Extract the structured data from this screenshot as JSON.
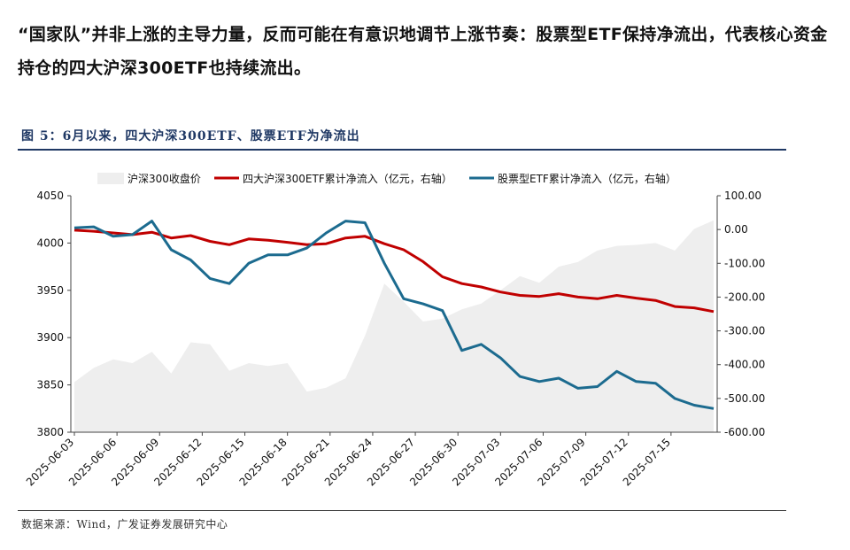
{
  "headline": "“国家队”并非上涨的主导力量，反而可能在有意识地调节上涨节奏：股票型ETF保持净流出，代表核心资金持仓的四大沪深300ETF也持续流出。",
  "figure_title": "图 5：6月以来，四大沪深300ETF、股票ETF为净流出",
  "source": "数据来源：Wind，广发证券发展研究中心",
  "colors": {
    "area": "#eeeeee",
    "red": "#c00000",
    "blue": "#1c6b8f",
    "rule": "#1f3864"
  },
  "chart_data": {
    "type": "line",
    "x": [
      "2025-06-03",
      "2025-06-04",
      "2025-06-05",
      "2025-06-06",
      "2025-06-09",
      "2025-06-10",
      "2025-06-11",
      "2025-06-12",
      "2025-06-13",
      "2025-06-16",
      "2025-06-17",
      "2025-06-18",
      "2025-06-19",
      "2025-06-20",
      "2025-06-23",
      "2025-06-24",
      "2025-06-25",
      "2025-06-26",
      "2025-06-27",
      "2025-06-30",
      "2025-07-01",
      "2025-07-02",
      "2025-07-03",
      "2025-07-04",
      "2025-07-07",
      "2025-07-08",
      "2025-07-09",
      "2025-07-10",
      "2025-07-11",
      "2025-07-14",
      "2025-07-15",
      "2025-07-16",
      "2025-07-17",
      "2025-07-18"
    ],
    "xticks": [
      "2025-06-03",
      "2025-06-06",
      "2025-06-09",
      "2025-06-12",
      "2025-06-15",
      "2025-06-18",
      "2025-06-21",
      "2025-06-24",
      "2025-06-27",
      "2025-06-30",
      "2025-07-03",
      "2025-07-06",
      "2025-07-09",
      "2025-07-12",
      "2025-07-15"
    ],
    "series": [
      {
        "name": "沪深300收盘价",
        "kind": "area",
        "axis": "left",
        "values": [
          3853,
          3868,
          3877,
          3873,
          3885,
          3862,
          3895,
          3893,
          3865,
          3873,
          3870,
          3873,
          3843,
          3847,
          3857,
          3902,
          3957,
          3938,
          3917,
          3920,
          3930,
          3936,
          3950,
          3965,
          3958,
          3975,
          3980,
          3992,
          3997,
          3998,
          4000,
          3992,
          4015,
          4024
        ]
      },
      {
        "name": "四大沪深300ETF累计净流入（亿元，右轴）",
        "kind": "line",
        "axis": "right",
        "values": [
          -2,
          -5,
          -10,
          -15,
          -8,
          -25,
          -18,
          -35,
          -45,
          -28,
          -32,
          -38,
          -45,
          -42,
          -25,
          -20,
          -42,
          -60,
          -95,
          -140,
          -160,
          -170,
          -185,
          -195,
          -198,
          -190,
          -200,
          -205,
          -195,
          -203,
          -210,
          -228,
          -232,
          -243
        ]
      },
      {
        "name": "股票型ETF累计净流入（亿元，右轴）",
        "kind": "line",
        "axis": "right",
        "values": [
          5,
          8,
          -20,
          -15,
          25,
          -60,
          -90,
          -145,
          -160,
          -100,
          -75,
          -75,
          -55,
          -10,
          25,
          20,
          -100,
          -205,
          -220,
          -240,
          -358,
          -340,
          -380,
          -435,
          -450,
          -440,
          -470,
          -465,
          -420,
          -450,
          -455,
          -500,
          -520,
          -530
        ]
      }
    ],
    "ylim_left": [
      3800,
      4050
    ],
    "yticks_left": [
      "3800",
      "3850",
      "3900",
      "3950",
      "4000",
      "4050"
    ],
    "ylim_right": [
      -600,
      100
    ],
    "yticks_right": [
      "100.00",
      "0.00",
      "-100.00",
      "-200.00",
      "-300.00",
      "-400.00",
      "-500.00",
      "-600.00"
    ],
    "legend_position": "top"
  }
}
